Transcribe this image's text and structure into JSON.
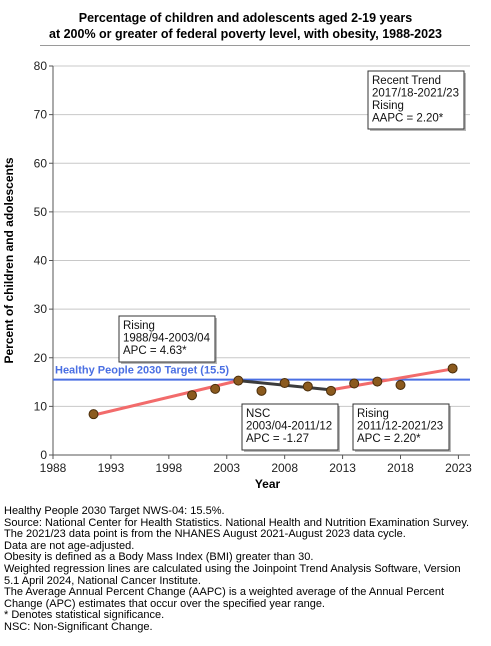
{
  "chart_data": {
    "type": "line",
    "title_lines": [
      "Percentage of children and adolescents aged 2-19 years",
      "at 200% or greater of federal poverty level, with obesity, 1988-2023"
    ],
    "xlabel": "Year",
    "ylabel": "Percent of children and adolescents",
    "xlim": [
      1988,
      2024
    ],
    "ylim": [
      0,
      80
    ],
    "x_ticks": [
      1988,
      1993,
      1998,
      2003,
      2008,
      2013,
      2018,
      2023
    ],
    "y_ticks": [
      0,
      10,
      20,
      30,
      40,
      50,
      60,
      70,
      80
    ],
    "grid": "horizontal",
    "observed": {
      "x": [
        1991.5,
        2000,
        2002,
        2004,
        2006,
        2008,
        2010,
        2012,
        2014,
        2016,
        2018,
        2022.5
      ],
      "y": [
        8.4,
        12.3,
        13.6,
        15.3,
        13.2,
        14.8,
        14.1,
        13.2,
        14.7,
        15.1,
        14.4,
        17.8
      ]
    },
    "trend_segments": [
      {
        "x": [
          1991.5,
          2004
        ],
        "y": [
          8.2,
          15.3
        ],
        "color": "#f26b6b"
      },
      {
        "x": [
          2004,
          2012
        ],
        "y": [
          15.3,
          13.4
        ],
        "color": "#3c3c3c"
      },
      {
        "x": [
          2012,
          2022.5
        ],
        "y": [
          13.4,
          17.7
        ],
        "color": "#f26b6b"
      }
    ],
    "target_line": {
      "value": 15.5,
      "label": "Healthy People 2030 Target (15.5)",
      "color": "#4a6fe3"
    },
    "annotations": [
      {
        "lines": [
          "Recent Trend",
          "2017/18-2021/23",
          "Rising",
          "AAPC =  2.20*"
        ]
      },
      {
        "lines": [
          "Rising",
          "1988/94-2003/04",
          "APC =  4.63*"
        ]
      },
      {
        "lines": [
          "NSC",
          "2003/04-2011/12",
          "APC = -1.27"
        ]
      },
      {
        "lines": [
          "Rising",
          "2011/12-2021/23",
          "APC =  2.20*"
        ]
      }
    ],
    "colors": {
      "point_fill": "#8b5a1e",
      "point_stroke": "#4a2d0a",
      "grid": "#c8c8c8"
    }
  },
  "notes": [
    "Healthy People 2030 Target NWS-04: 15.5%.",
    "Source: National Center for Health Statistics. National Health and Nutrition Examination Survey.",
    "The 2021/23 data point is from the NHANES August 2021-August 2023 data cycle.",
    "Data are not age-adjusted.",
    "Obesity is defined as a Body Mass Index (BMI) greater than 30.",
    "Weighted regression lines are calculated using the Joinpoint Trend Analysis Software, Version",
    "5.1 April 2024, National Cancer Institute.",
    "The Average Annual Percent Change (AAPC) is a weighted average of the Annual Percent",
    "Change (APC) estimates that occur over the specified year range.",
    "* Denotes statistical significance.",
    "NSC: Non-Significant Change."
  ]
}
